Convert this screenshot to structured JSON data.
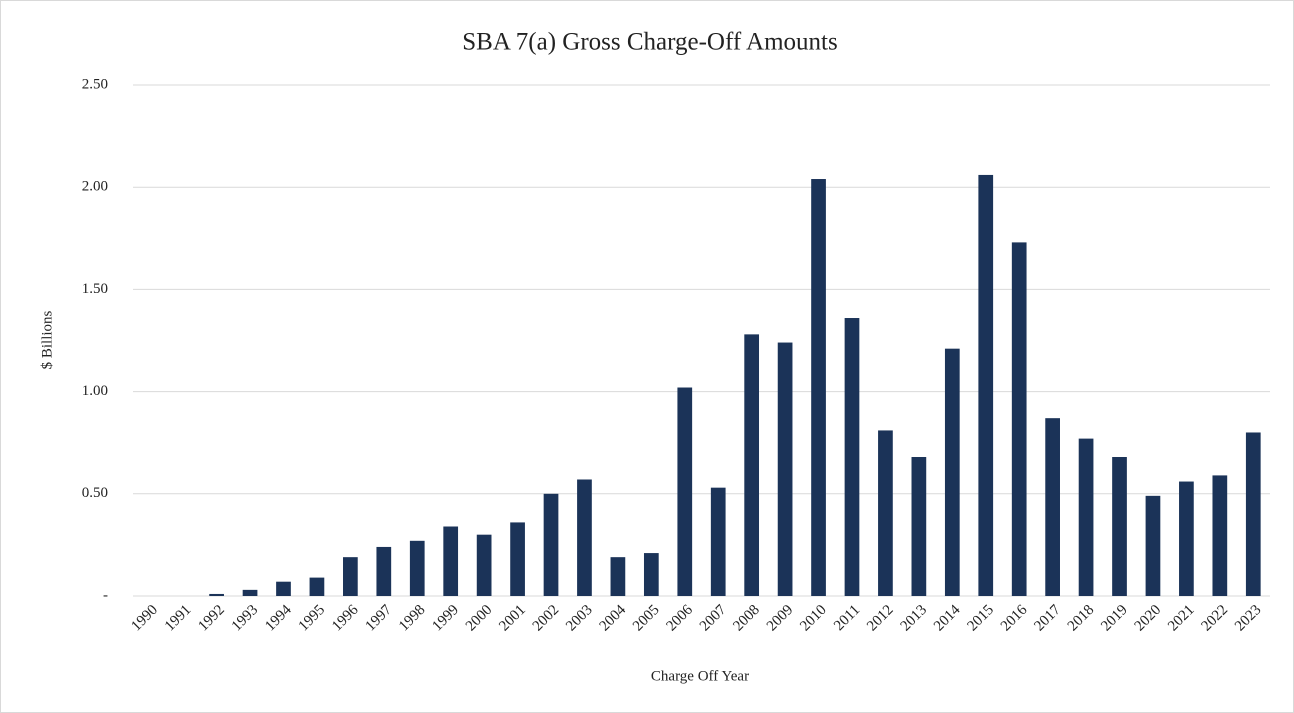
{
  "chart_data": {
    "type": "bar",
    "title": "SBA 7(a) Gross Charge-Off Amounts",
    "x_label": "Charge Off Year",
    "y_label": "$ Billions",
    "categories": [
      "1990",
      "1991",
      "1992",
      "1993",
      "1994",
      "1995",
      "1996",
      "1997",
      "1998",
      "1999",
      "2000",
      "2001",
      "2002",
      "2003",
      "2004",
      "2005",
      "2006",
      "2007",
      "2008",
      "2009",
      "2010",
      "2011",
      "2012",
      "2013",
      "2014",
      "2015",
      "2016",
      "2017",
      "2018",
      "2019",
      "2020",
      "2021",
      "2022",
      "2023"
    ],
    "values": [
      0,
      0,
      0.01,
      0.03,
      0.07,
      0.09,
      0.19,
      0.24,
      0.27,
      0.34,
      0.3,
      0.36,
      0.5,
      0.57,
      0.19,
      0.21,
      1.02,
      0.53,
      1.28,
      1.24,
      2.04,
      1.36,
      0.81,
      0.68,
      1.21,
      2.06,
      1.73,
      0.87,
      0.77,
      0.68,
      0.49,
      0.56,
      0.59,
      0.8
    ],
    "color": "#1b3358",
    "ylim": [
      0,
      2.5
    ],
    "yticks": [
      {
        "value": 0,
        "label": "-"
      },
      {
        "value": 0.5,
        "label": "0.50"
      },
      {
        "value": 1,
        "label": "1.00"
      },
      {
        "value": 1.5,
        "label": "1.50"
      },
      {
        "value": 2,
        "label": "2.00"
      },
      {
        "value": 2.5,
        "label": "2.50"
      }
    ],
    "grid": true
  }
}
